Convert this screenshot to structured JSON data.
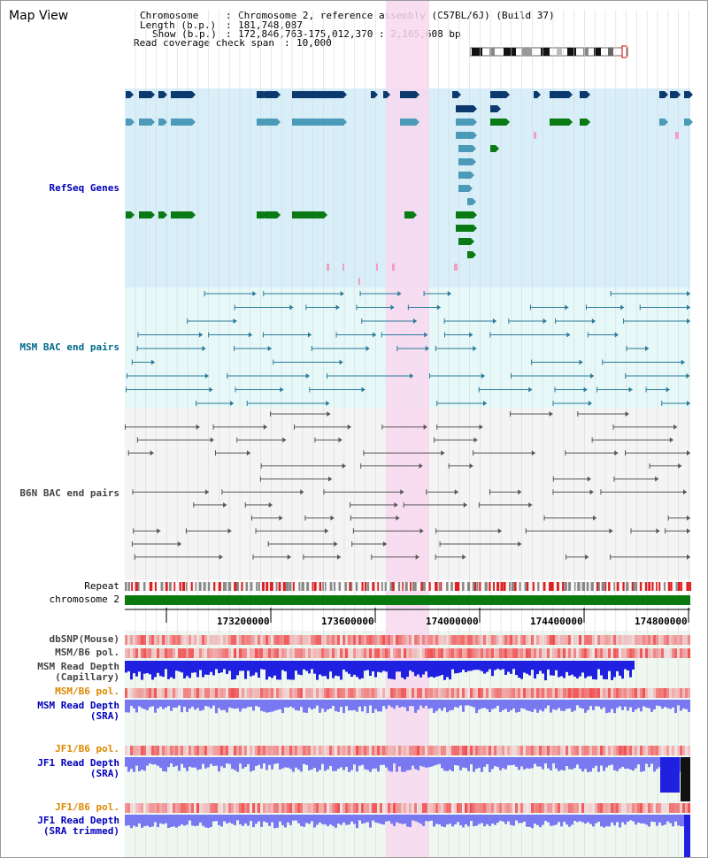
{
  "title": "Map View",
  "info": {
    "chromosome_label": "Chromosome",
    "chromosome_value": "Chromosome 2, reference assembly (C57BL/6J) (Build 37)",
    "length_label": "Length (b.p.)",
    "length_value": "181,748,087",
    "show_label": "Show (b.p.)",
    "show_value": "172,846,763-175,012,370 : 2,165,608 bp",
    "coverage_label": "Read coverage check span",
    "coverage_value": "10,000"
  },
  "tracks": {
    "refseq": "RefSeq Genes",
    "msm_bac": "MSM BAC end pairs",
    "b6n_bac": "B6N BAC end pairs",
    "repeat": "Repeat",
    "chromosome": "chromosome 2",
    "dbsnp": "dbSNP(Mouse)",
    "msm_b6_pol_1": "MSM/B6 pol.",
    "msm_depth_cap_1": "MSM Read Depth",
    "msm_depth_cap_2": "(Capillary)",
    "msm_b6_pol_2": "MSM/B6 pol.",
    "msm_depth_sra_1": "MSM Read Depth",
    "msm_depth_sra_2": "(SRA)",
    "jf1_b6_pol_1": "JF1/B6 pol.",
    "jf1_depth_sra_1": "JF1 Read Depth",
    "jf1_depth_sra_2": "(SRA)",
    "jf1_b6_pol_2": "JF1/B6 pol.",
    "jf1_depth_trim_1": "JF1 Read Depth",
    "jf1_depth_trim_2": "(SRA trimmed)"
  },
  "axis": {
    "ticks": [
      "173200000",
      "173600000",
      "174000000",
      "174400000",
      "174800000"
    ]
  },
  "colors": {
    "refseq_bg": "#d8eef8",
    "msm_bg": "#e6f8f8",
    "b6n_bg": "#f4f4f4",
    "highlight": "#f8d8f0",
    "gene_dark": "#0c3a6e",
    "gene_mid": "#4a9ab8",
    "gene_green": "#0a7a14",
    "msm_line": "#2a7a9a",
    "b6n_line": "#555555",
    "chrom_bar": "#0a7a10",
    "depth_blue": "#2020e0",
    "depth_light": "#7878f0",
    "pol_red": "#f05050",
    "label_blue": "#0000bb",
    "label_teal": "#006a8a",
    "label_orange": "#dd8800"
  }
}
